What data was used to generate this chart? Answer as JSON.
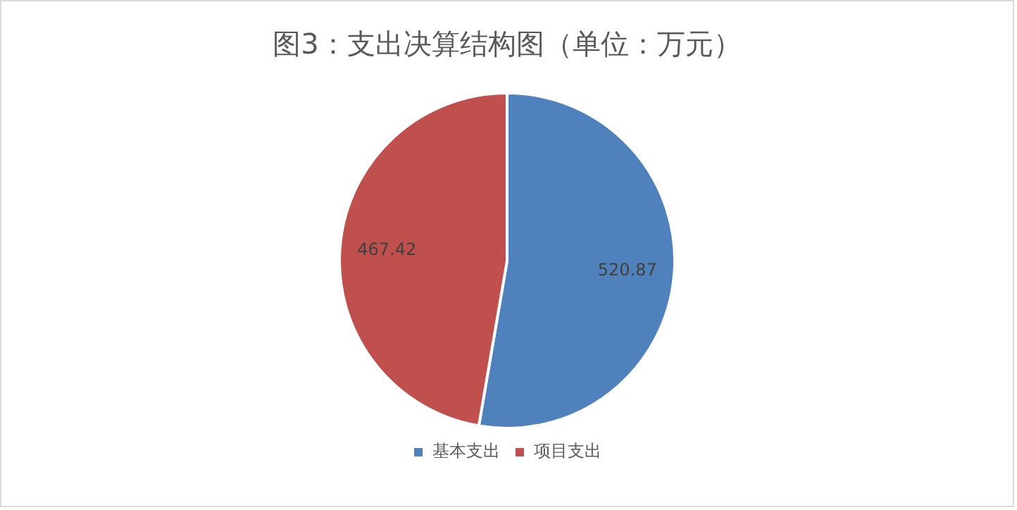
{
  "chart_data": {
    "type": "pie",
    "title": "图3：支出决算结构图（单位：万元）",
    "categories": [
      "基本支出",
      "项目支出"
    ],
    "values": [
      520.87,
      467.42
    ],
    "colors": [
      "#4f81bd",
      "#c0504d"
    ],
    "data_labels": true,
    "legend": "bottom"
  }
}
